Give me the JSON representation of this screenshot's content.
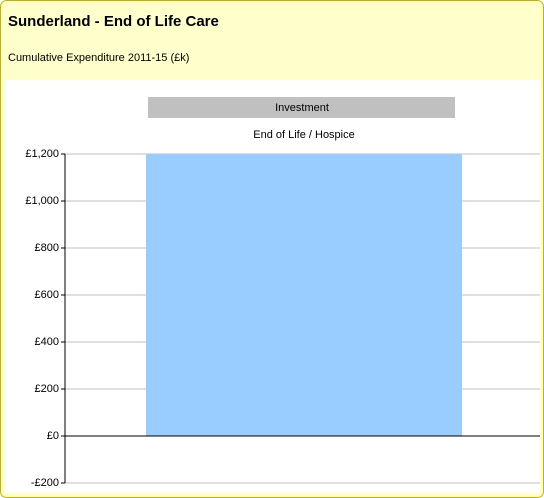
{
  "chart_data": {
    "type": "bar",
    "title": "Sunderland - End of Life Care",
    "subtitle": "Cumulative Expenditure 2011-15 (£k)",
    "group": "Investment",
    "categories": [
      "End of Life / Hospice"
    ],
    "values": [
      1200
    ],
    "color": "#99ccff",
    "ylim": [
      -200,
      1200
    ],
    "yticks": [
      {
        "value": -200,
        "label": "-£200"
      },
      {
        "value": 0,
        "label": "£0"
      },
      {
        "value": 200,
        "label": "£200"
      },
      {
        "value": 400,
        "label": "£400"
      },
      {
        "value": 600,
        "label": "£600"
      },
      {
        "value": 800,
        "label": "£800"
      },
      {
        "value": 1000,
        "label": "£1,000"
      },
      {
        "value": 1200,
        "label": "£1,200"
      }
    ],
    "grid": true
  }
}
